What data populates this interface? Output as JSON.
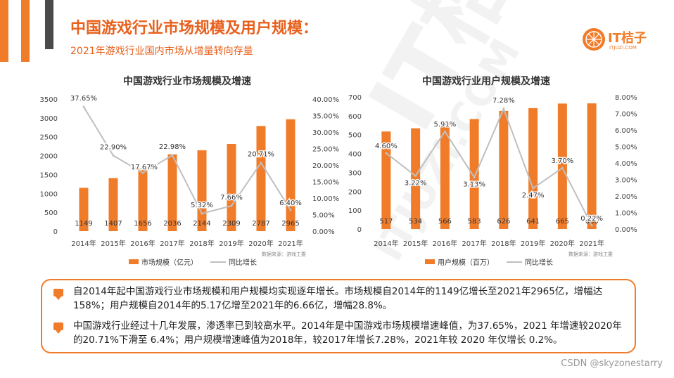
{
  "header": {
    "title": "中国游戏行业市场规模及用户规模：",
    "subtitle": "2021年游戏行业国内市场从增量转向存量"
  },
  "logo": {
    "text": "IT桔子",
    "sub": "ITJUZI.COM"
  },
  "colors": {
    "accent": "#f07c2a",
    "line": "#bfbfbf",
    "dark": "#4a4a4a"
  },
  "chart_data": [
    {
      "type": "bar",
      "title": "中国游戏行业市场规模及增速",
      "categories": [
        "2014年",
        "2015年",
        "2016年",
        "2017年",
        "2018年",
        "2019年",
        "2020年",
        "2021年"
      ],
      "series": [
        {
          "name": "市场规模（亿元）",
          "type": "bar",
          "values": [
            1149,
            1407,
            1656,
            2036,
            2144,
            2309,
            2787,
            2965
          ],
          "labels": [
            "1149",
            "1407",
            "1656",
            "2036",
            "2144",
            "2309",
            "2787",
            "2965"
          ]
        },
        {
          "name": "同比增长",
          "type": "line",
          "axis": "right",
          "values": [
            37.65,
            22.9,
            17.67,
            22.98,
            5.32,
            7.66,
            20.71,
            6.4
          ],
          "labels": [
            "37.65%",
            "22.90%",
            "17.67%",
            "22.98%",
            "5.32%",
            "7.66%",
            "20.71%",
            "6.40%"
          ]
        }
      ],
      "ylim": [
        0,
        3500
      ],
      "yticks": [
        "0",
        "500",
        "1000",
        "1500",
        "2000",
        "2500",
        "3000",
        "3500"
      ],
      "y2lim": [
        0,
        40
      ],
      "y2ticks": [
        "0.00%",
        "5.00%",
        "10.00%",
        "15.00%",
        "20.00%",
        "25.00%",
        "30.00%",
        "35.00%",
        "40.00%"
      ],
      "source": "数据来源：游戏工委"
    },
    {
      "type": "bar",
      "title": "中国游戏行业用户规模及增速",
      "categories": [
        "2014年",
        "2015年",
        "2016年",
        "2017年",
        "2018年",
        "2019年",
        "2020年",
        "2021年"
      ],
      "series": [
        {
          "name": "用户规模（百万）",
          "type": "bar",
          "values": [
            517,
            534,
            566,
            583,
            626,
            641,
            665,
            666
          ],
          "labels": [
            "517",
            "534",
            "566",
            "583",
            "626",
            "641",
            "665",
            "666"
          ]
        },
        {
          "name": "同比增长",
          "type": "line",
          "axis": "right",
          "values": [
            4.6,
            3.22,
            5.91,
            3.13,
            7.28,
            2.47,
            3.7,
            0.22
          ],
          "labels": [
            "4.60%",
            "3.22%",
            "5.91%",
            "3.13%",
            "7.28%",
            "2.47%",
            "3.70%",
            "0.22%"
          ]
        }
      ],
      "ylim": [
        0,
        700
      ],
      "yticks": [
        "0",
        "100",
        "200",
        "300",
        "400",
        "500",
        "600",
        "700"
      ],
      "y2lim": [
        0,
        8
      ],
      "y2ticks": [
        "0.00%",
        "1.00%",
        "2.00%",
        "3.00%",
        "4.00%",
        "5.00%",
        "6.00%",
        "7.00%",
        "8.00%"
      ],
      "source": "数据来源：游戏工委"
    }
  ],
  "notes": [
    "自2014年起中国游戏行业市场规模和用户规模均实现逐年增长。市场规模自2014年的1149亿增长至2021年2965亿，增幅达158%；用户规模自2014年的5.17亿增至2021年的6.66亿，增幅28.8%。",
    "中国游戏行业经过十几年发展，渗透率已到较高水平。2014年是中国游戏市场规模增速峰值，为37.65%，2021 年增速较2020年的20.71%下滑至 6.4%；用户规模增速峰值为2018年，较2017年增长7.28%，2021年较 2020 年仅增长 0.2%。"
  ],
  "footer": {
    "credit": "CSDN @skyzonestarry"
  },
  "watermark": {
    "text": "IT桔子",
    "sub": "ITJUZI.COM"
  }
}
